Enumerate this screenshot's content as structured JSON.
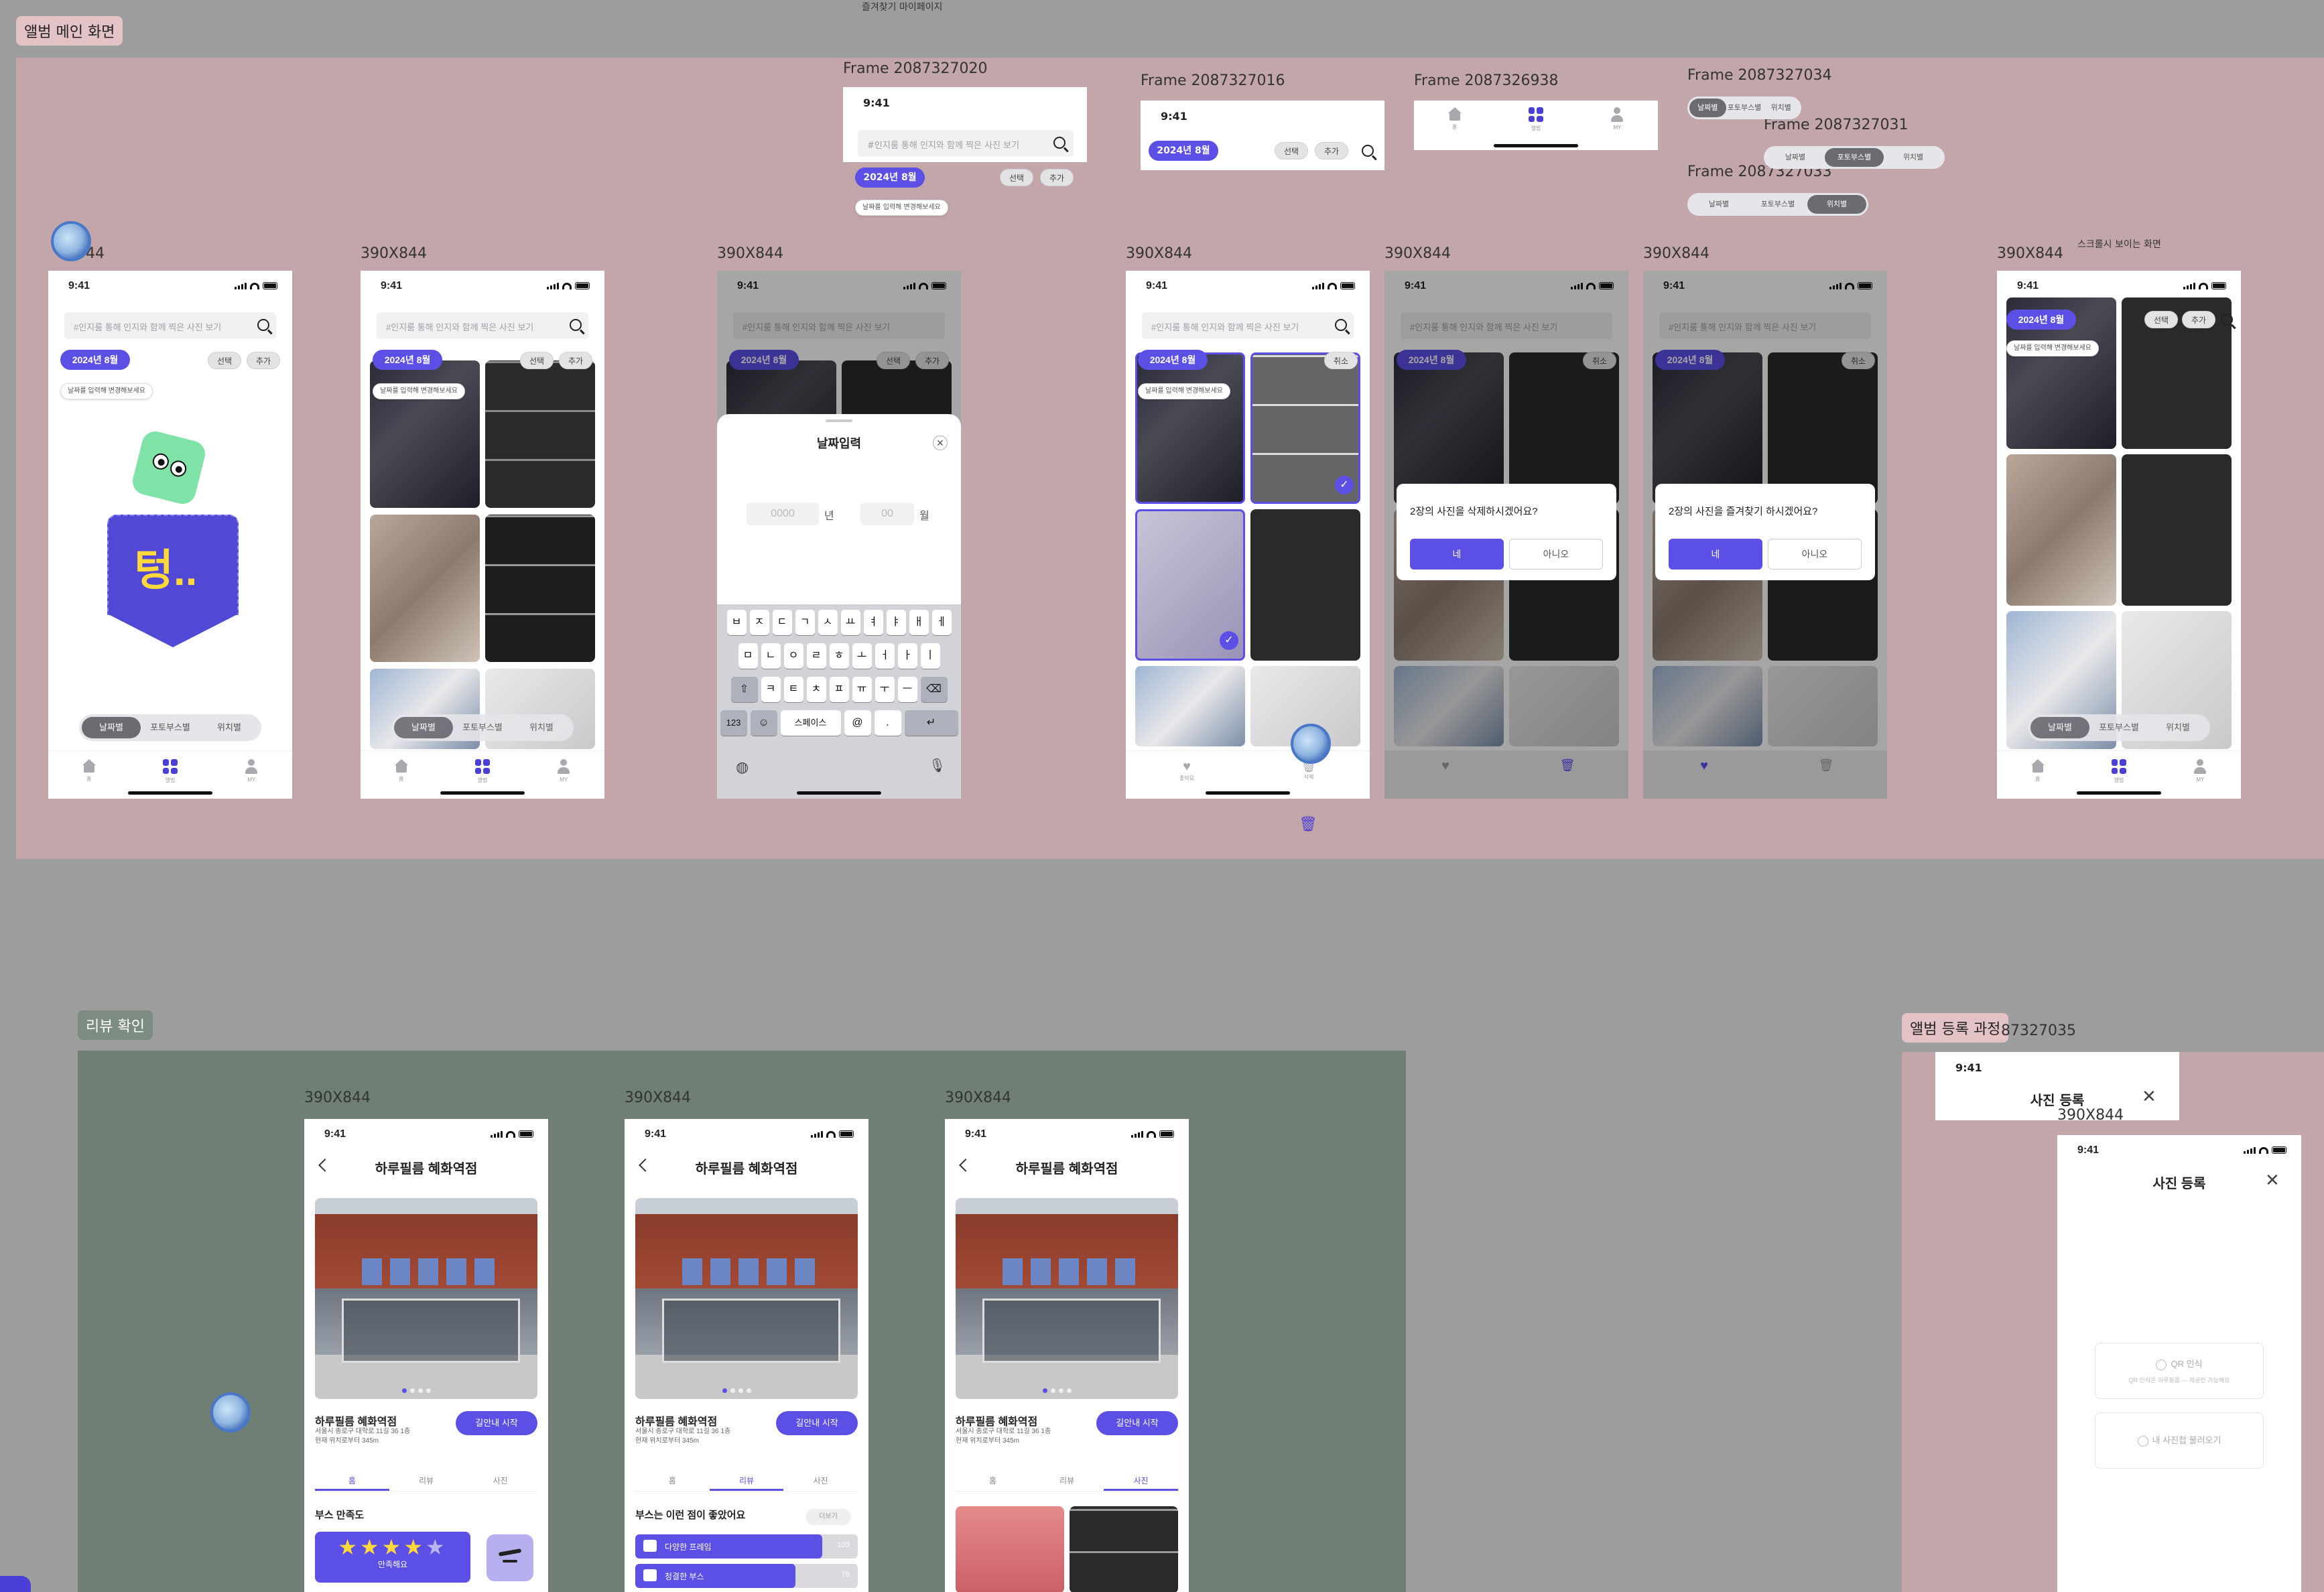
{
  "sections": {
    "album_main": "앨범 메인 화면",
    "review": "리뷰 확인",
    "album_register": "앨범 등록 과정",
    "favorites_top_label": "즐겨찾기 마이페이지"
  },
  "frame_labels": {
    "f_2087327020": "Frame 2087327020",
    "f_2087327016": "Frame 2087327016",
    "f_2087326938": "Frame 2087326938",
    "f_2087327034": "Frame 2087327034",
    "f_2087327031": "Frame 2087327031",
    "f_2087327033": "Frame 2087327033",
    "f_87327035": "87327035",
    "size": "390X844",
    "size_partial": "44",
    "scroll_note": "스크롤시 보이는 화면"
  },
  "status": {
    "time": "9:41"
  },
  "search": {
    "placeholder": "#인지룸 통해 인지와 함께 찍은 사진 보기"
  },
  "chips": {
    "date": "2024년 8월",
    "select": "선택",
    "add": "추가",
    "cancel": "취소"
  },
  "tooltip": "날짜를 입력해 변경해보세요",
  "segments": {
    "date": "날짜별",
    "booth": "포토부스별",
    "location": "위치별"
  },
  "tabs": {
    "home": "홈",
    "album": "앨범",
    "my": "MY",
    "favorite": "좋아요",
    "delete": "삭제"
  },
  "mascot": {
    "text": "텅.."
  },
  "date_modal": {
    "title": "날짜입력",
    "year_placeholder": "0000",
    "year_unit": "년",
    "month_placeholder": "00",
    "month_unit": "월"
  },
  "keyboard": {
    "row1": [
      "ㅂ",
      "ㅈ",
      "ㄷ",
      "ㄱ",
      "ㅅ",
      "ㅛ",
      "ㅕ",
      "ㅑ",
      "ㅐ",
      "ㅔ"
    ],
    "row2": [
      "ㅁ",
      "ㄴ",
      "ㅇ",
      "ㄹ",
      "ㅎ",
      "ㅗ",
      "ㅓ",
      "ㅏ",
      "ㅣ"
    ],
    "row3": [
      "ㅋ",
      "ㅌ",
      "ㅊ",
      "ㅍ",
      "ㅠ",
      "ㅜ",
      "ㅡ"
    ],
    "num": "123",
    "space": "스페이스",
    "at": "@",
    "dot": "."
  },
  "dialogs": {
    "delete_q": "2장의 사진을 삭제하시겠어요?",
    "fav_q": "2장의 사진을 즐겨찾기 하시겠어요?",
    "yes": "네",
    "no": "아니오"
  },
  "review": {
    "title": "하루필름 혜화역점",
    "store_name": "하루필름 혜화역점",
    "address": "서울시 종로구 대학로 11길 36 1층",
    "distance": "현재 위치로부터 345m",
    "nav_button": "길안내 시작",
    "tabs": [
      "홈",
      "리뷰",
      "사진"
    ],
    "satisfaction_title": "부스 만족도",
    "rating_text": "만족해요",
    "rating_stars": 4,
    "good_points_title": "부스는 이런 점이 좋았어요",
    "more": "더보기",
    "good_points": [
      {
        "label": "다양한 프레임",
        "count": "103",
        "fill": 0.84
      },
      {
        "label": "청결한 부스",
        "count": "78",
        "fill": 0.72
      }
    ]
  },
  "register": {
    "title": "사진 등록",
    "qr": "QR 인식",
    "qr_sub": "QR 인식은 하루필름 — 제공만 가능해요",
    "upload": "내 사진첩 불러오기"
  }
}
